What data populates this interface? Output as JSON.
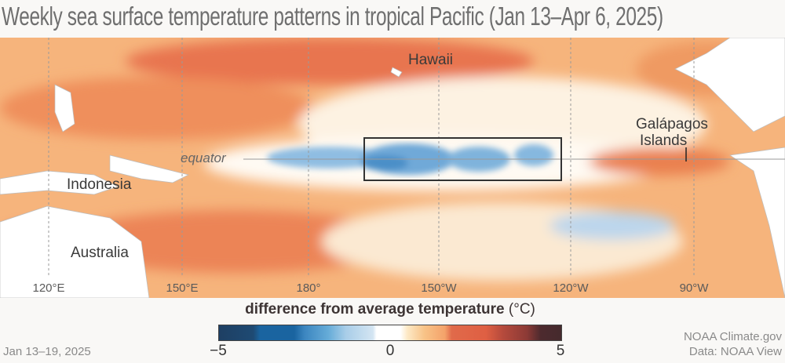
{
  "title": "Weekly sea surface temperature patterns in tropical Pacific (Jan 13–Apr 6, 2025)",
  "map": {
    "labels": {
      "hawaii": "Hawaii",
      "galapagos_1": "Galápagos",
      "galapagos_2": "Islands",
      "equator": "equator",
      "indonesia": "Indonesia",
      "australia": "Australia"
    },
    "longitudes": [
      "120°E",
      "150°E",
      "180°",
      "150°W",
      "120°W",
      "90°W"
    ],
    "highlight_box": "Niño 3.4 region outline"
  },
  "legend": {
    "title": "difference from average temperature",
    "unit": "(°C)",
    "min": "−5",
    "mid": "0",
    "max": "5",
    "colors": [
      "#1e3f63",
      "#1a64a0",
      "#66acd8",
      "#ffffff",
      "#f4a26a",
      "#df5f43",
      "#452a2d"
    ]
  },
  "date": "Jan 13–19, 2025",
  "credit": "NOAA Climate.gov",
  "source": "Data: NOAA View"
}
